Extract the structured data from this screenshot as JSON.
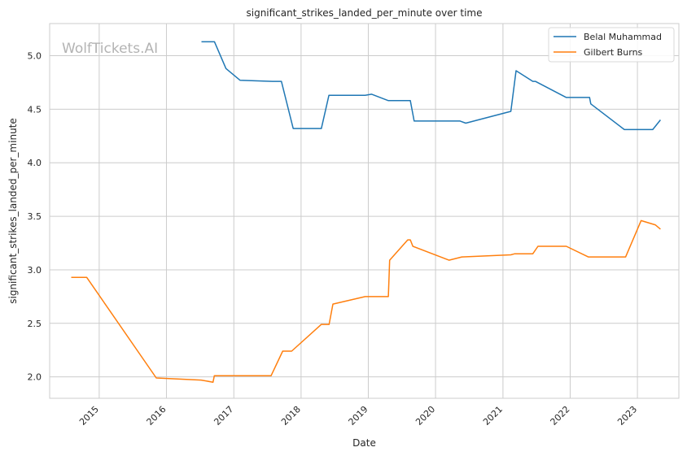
{
  "watermark": "WolfTickets.AI",
  "chart_data": {
    "type": "line",
    "title": "significant_strikes_landed_per_minute over time",
    "xlabel": "Date",
    "ylabel": "significant_strikes_landed_per_minute",
    "xlim": [
      "2014-04-07",
      "2023-08-14"
    ],
    "ylim": [
      1.8,
      5.3
    ],
    "x_ticks": [
      "2015",
      "2016",
      "2017",
      "2018",
      "2019",
      "2020",
      "2021",
      "2022",
      "2023"
    ],
    "y_ticks": [
      "2.0",
      "2.5",
      "3.0",
      "3.5",
      "4.0",
      "4.5",
      "5.0"
    ],
    "grid": true,
    "legend_position": "top-right",
    "colors": {
      "Belal Muhammad": "#1f77b4",
      "Gilbert Burns": "#ff7f0e"
    },
    "series": [
      {
        "name": "Belal Muhammad",
        "points": [
          [
            "2016-07-09",
            5.13
          ],
          [
            "2016-09-18",
            5.13
          ],
          [
            "2016-11-19",
            4.88
          ],
          [
            "2017-02-04",
            4.77
          ],
          [
            "2017-07-29",
            4.76
          ],
          [
            "2017-09-16",
            4.76
          ],
          [
            "2017-11-19",
            4.32
          ],
          [
            "2018-04-21",
            4.32
          ],
          [
            "2018-06-01",
            4.63
          ],
          [
            "2018-12-15",
            4.63
          ],
          [
            "2019-01-19",
            4.64
          ],
          [
            "2019-04-20",
            4.58
          ],
          [
            "2019-08-17",
            4.58
          ],
          [
            "2019-09-07",
            4.39
          ],
          [
            "2020-05-13",
            4.39
          ],
          [
            "2020-06-13",
            4.37
          ],
          [
            "2021-02-13",
            4.48
          ],
          [
            "2021-03-13",
            4.86
          ],
          [
            "2021-06-12",
            4.76
          ],
          [
            "2021-06-26",
            4.76
          ],
          [
            "2021-12-11",
            4.61
          ],
          [
            "2022-04-16",
            4.61
          ],
          [
            "2022-04-23",
            4.55
          ],
          [
            "2022-10-22",
            4.31
          ],
          [
            "2023-03-25",
            4.31
          ],
          [
            "2023-05-06",
            4.4
          ]
        ]
      },
      {
        "name": "Gilbert Burns",
        "points": [
          [
            "2014-08-02",
            2.93
          ],
          [
            "2014-10-25",
            2.93
          ],
          [
            "2015-11-07",
            1.99
          ],
          [
            "2016-07-08",
            1.97
          ],
          [
            "2016-09-10",
            1.95
          ],
          [
            "2016-09-17",
            2.01
          ],
          [
            "2017-07-22",
            2.01
          ],
          [
            "2017-09-23",
            2.24
          ],
          [
            "2017-11-11",
            2.24
          ],
          [
            "2018-04-21",
            2.49
          ],
          [
            "2018-06-02",
            2.49
          ],
          [
            "2018-06-23",
            2.68
          ],
          [
            "2018-12-15",
            2.75
          ],
          [
            "2019-04-20",
            2.75
          ],
          [
            "2019-04-27",
            3.09
          ],
          [
            "2019-08-03",
            3.28
          ],
          [
            "2019-08-17",
            3.28
          ],
          [
            "2019-08-31",
            3.22
          ],
          [
            "2020-03-14",
            3.09
          ],
          [
            "2020-05-23",
            3.12
          ],
          [
            "2021-02-13",
            3.14
          ],
          [
            "2021-03-06",
            3.15
          ],
          [
            "2021-06-12",
            3.15
          ],
          [
            "2021-07-10",
            3.22
          ],
          [
            "2021-12-11",
            3.22
          ],
          [
            "2022-04-09",
            3.12
          ],
          [
            "2022-10-29",
            3.12
          ],
          [
            "2023-01-21",
            3.46
          ],
          [
            "2023-04-08",
            3.42
          ],
          [
            "2023-05-06",
            3.38
          ]
        ]
      }
    ]
  }
}
